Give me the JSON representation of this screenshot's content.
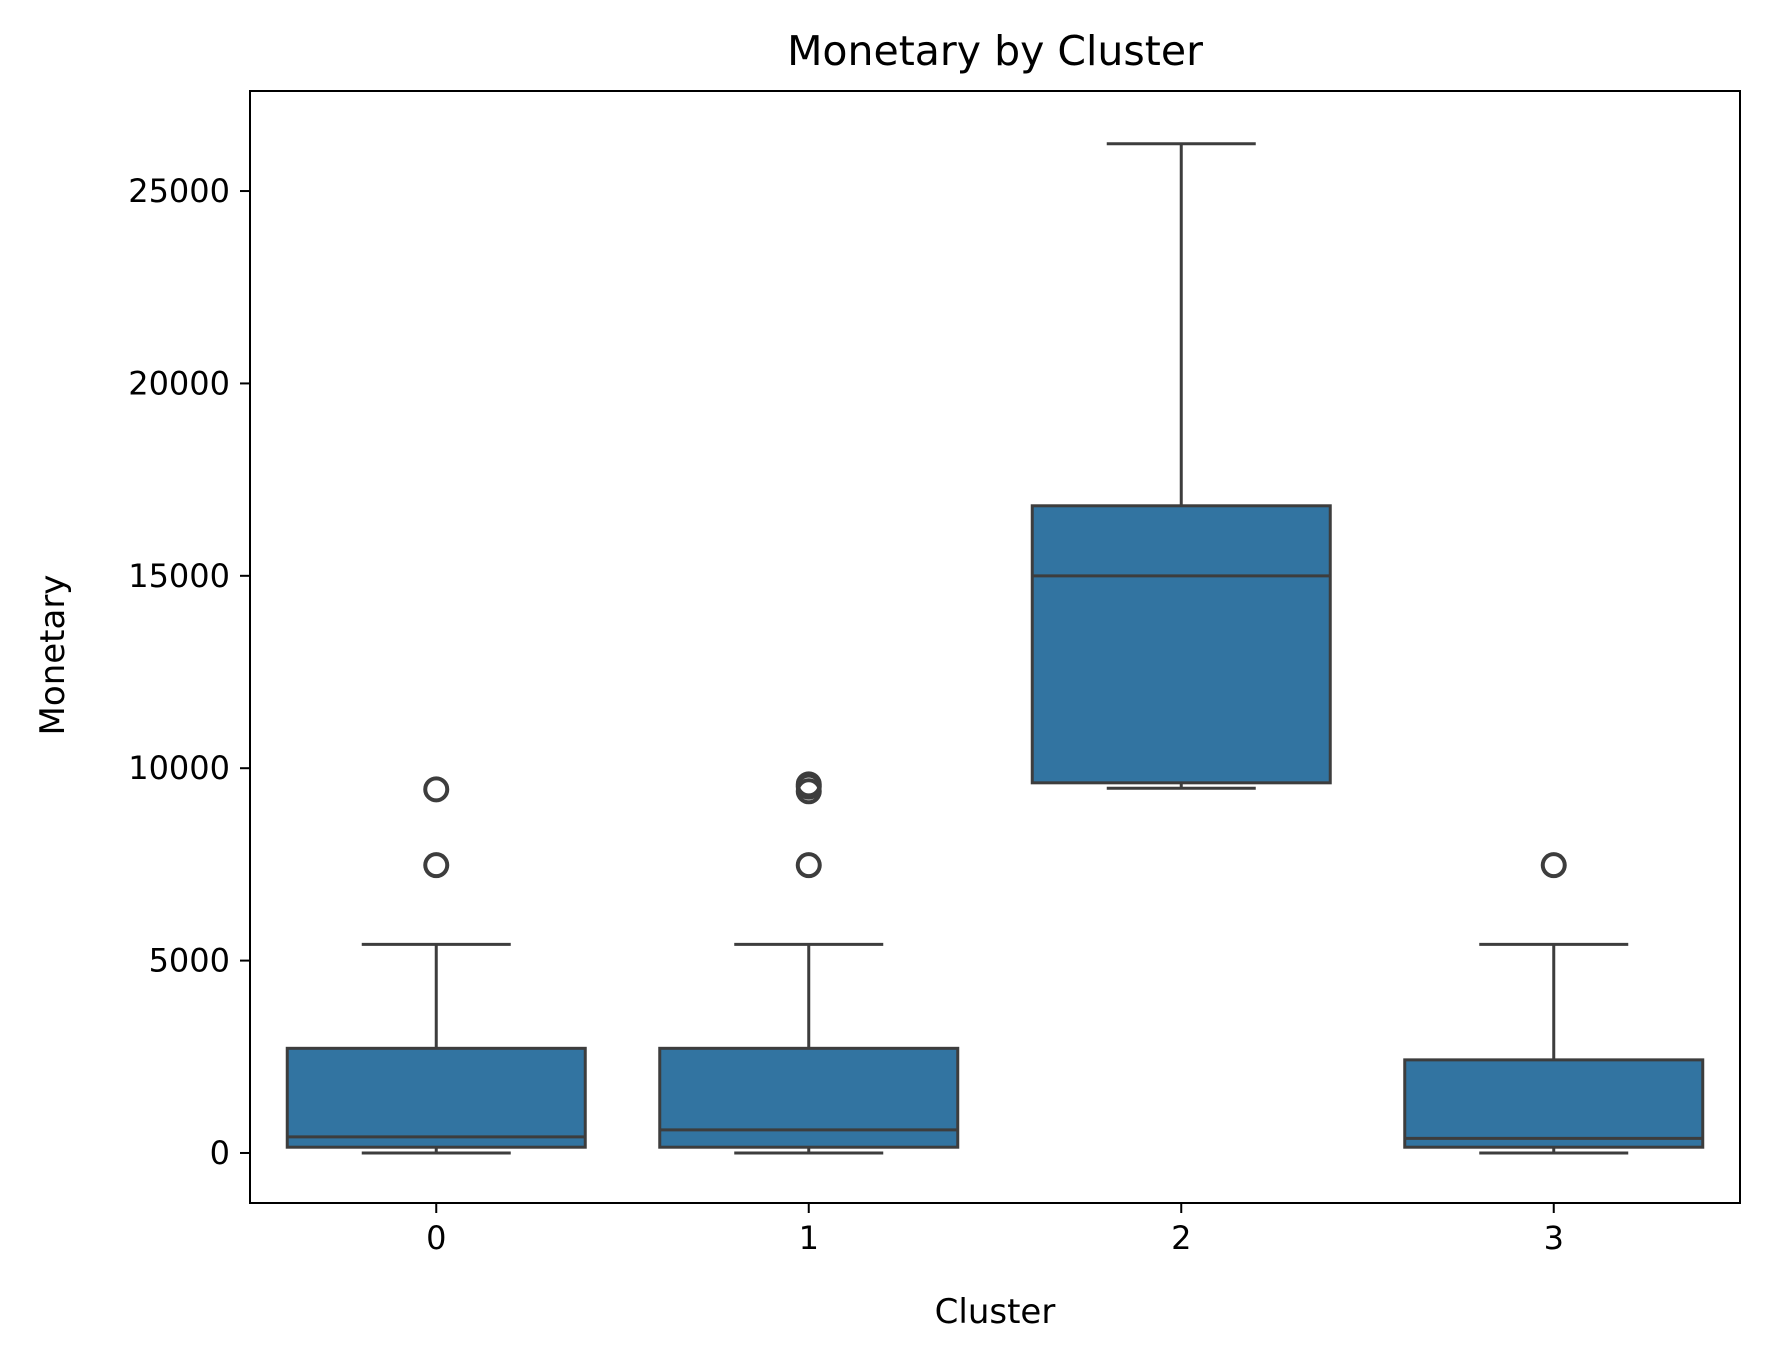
{
  "chart_data": {
    "type": "box",
    "title": "Monetary by Cluster",
    "xlabel": "Cluster",
    "ylabel": "Monetary",
    "categories": [
      "0",
      "1",
      "2",
      "3"
    ],
    "ylim": [
      -1300,
      27600
    ],
    "yticks": [
      0,
      5000,
      10000,
      15000,
      20000,
      25000
    ],
    "grid": false,
    "colors": {
      "box_fill": "#3274a1",
      "line": "#3d3d3d"
    },
    "boxes": [
      {
        "category": "0",
        "whisker_low": 0,
        "q1": 150,
        "median": 420,
        "q3": 2720,
        "whisker_high": 5420,
        "outliers": [
          7480,
          9450
        ]
      },
      {
        "category": "1",
        "whisker_low": 0,
        "q1": 150,
        "median": 600,
        "q3": 2720,
        "whisker_high": 5420,
        "outliers": [
          7480,
          9400,
          9520,
          9580
        ]
      },
      {
        "category": "2",
        "whisker_low": 9480,
        "q1": 9620,
        "median": 15000,
        "q3": 16820,
        "whisker_high": 26230,
        "outliers": []
      },
      {
        "category": "3",
        "whisker_low": 0,
        "q1": 150,
        "median": 380,
        "q3": 2420,
        "whisker_high": 5420,
        "outliers": [
          7480
        ]
      }
    ]
  }
}
